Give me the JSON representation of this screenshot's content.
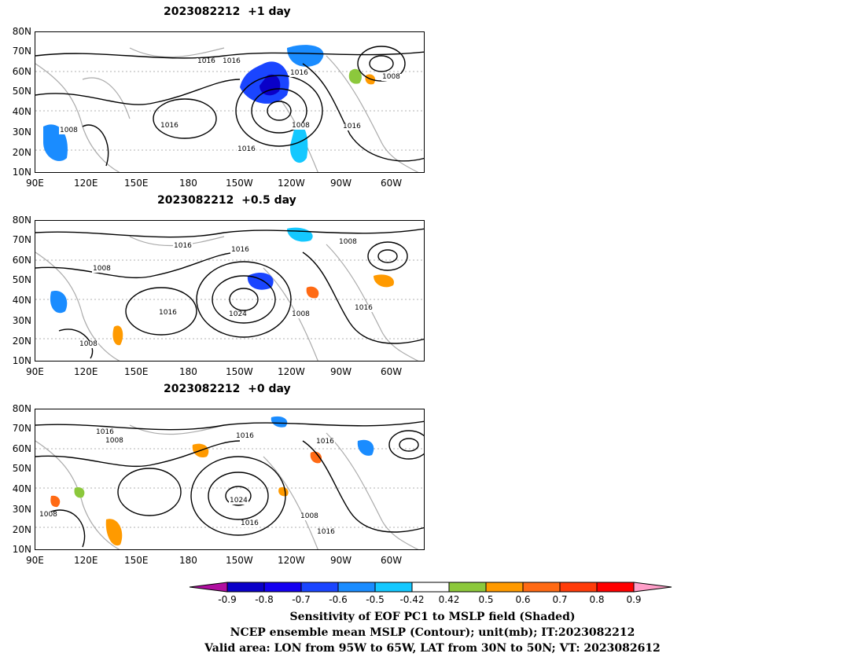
{
  "panels": [
    {
      "title": "2023082212  +1 day",
      "contour_labels": [
        "1016",
        "1016",
        "1016",
        "1008",
        "1008",
        "1016",
        "1008",
        "1016",
        "1016"
      ]
    },
    {
      "title": "2023082212  +0.5 day",
      "contour_labels": [
        "1016",
        "1016",
        "1008",
        "1008",
        "1016",
        "1024",
        "1008",
        "1016",
        "1008"
      ]
    },
    {
      "title": "2023082212  +0 day",
      "contour_labels": [
        "1016",
        "1008",
        "1016",
        "1016",
        "1008",
        "1024",
        "1008",
        "1016",
        "1016"
      ]
    }
  ],
  "axes": {
    "y_ticks": [
      "80N",
      "70N",
      "60N",
      "50N",
      "40N",
      "30N",
      "20N",
      "10N"
    ],
    "x_ticks": [
      "90E",
      "120E",
      "150E",
      "180",
      "150W",
      "120W",
      "90W",
      "60W"
    ]
  },
  "colorbar": {
    "levels": [
      "-0.9",
      "-0.8",
      "-0.7",
      "-0.6",
      "-0.5",
      "-0.42",
      "0.42",
      "0.5",
      "0.6",
      "0.7",
      "0.8",
      "0.9"
    ],
    "colors": [
      "#b00ea0",
      "#0a00c8",
      "#1400f0",
      "#1a45ff",
      "#1a8cff",
      "#14c8ff",
      "#ffffff",
      "#8cc83c",
      "#ff9a00",
      "#ff6a14",
      "#ff3c0a",
      "#ff0000",
      "#ff9ec8"
    ]
  },
  "captions": {
    "line1": "Sensitivity of EOF PC1 to MSLP field (Shaded)",
    "line2": "NCEP ensemble mean MSLP (Contour); unit(mb); IT:2023082212",
    "line3": "Valid area: LON from 95W to 65W, LAT from 30N to 50N; VT: 2023082612"
  }
}
